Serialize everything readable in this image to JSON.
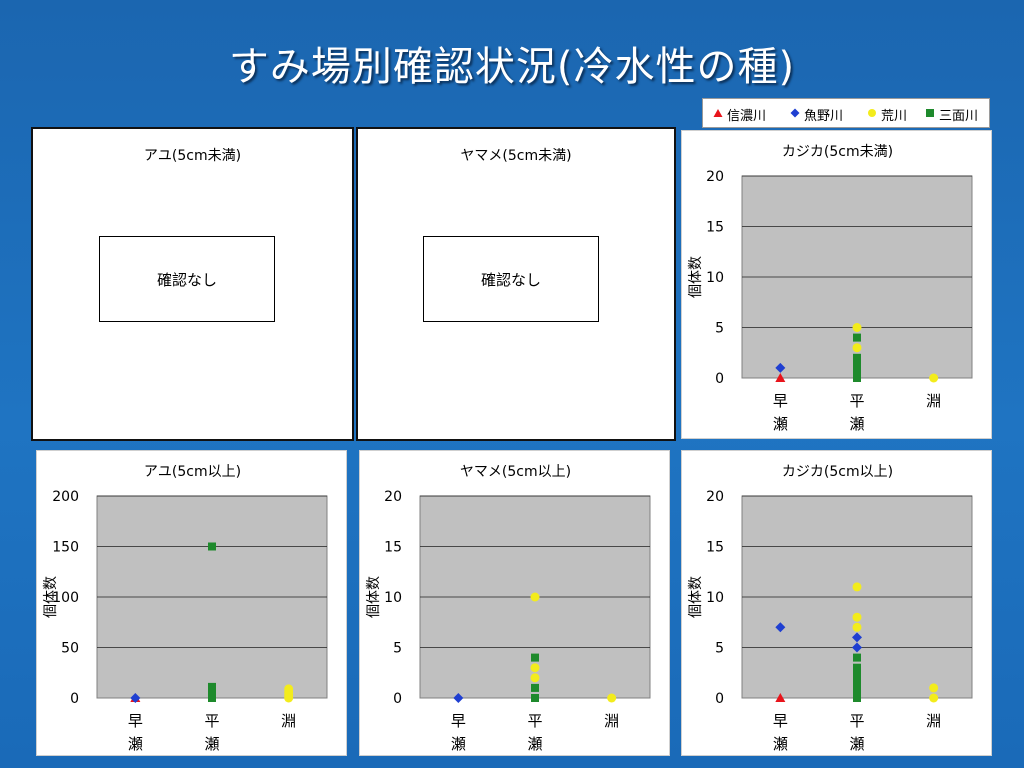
{
  "slide": {
    "title": "すみ場別確認状況(冷水性の種)"
  },
  "legend": [
    {
      "label": "信濃川",
      "color": "#e8141b",
      "marker": "triangle"
    },
    {
      "label": "魚野川",
      "color": "#1f3fd1",
      "marker": "diamond"
    },
    {
      "label": "荒川",
      "color": "#f3ec1c",
      "marker": "circle"
    },
    {
      "label": "三面川",
      "color": "#1e8a2c",
      "marker": "square"
    }
  ],
  "panels": {
    "ayu_small": {
      "title": "アユ(5cm未満)",
      "nodata": "確認なし"
    },
    "yamame_small": {
      "title": "ヤマメ(5cm未満)",
      "nodata": "確認なし"
    }
  },
  "chart_data": [
    {
      "id": "kajika_small",
      "type": "scatter",
      "title": "カジカ(5cm未満)",
      "categories": [
        "早\n瀬",
        "平\n瀬",
        "淵"
      ],
      "ylabel": "個体数",
      "xlabel": "",
      "ylim": [
        0,
        20
      ],
      "yticks": [
        0,
        5,
        10,
        15,
        20
      ],
      "grid": true,
      "series": [
        {
          "name": "信濃川",
          "points": [
            [
              0,
              0
            ]
          ]
        },
        {
          "name": "魚野川",
          "points": [
            [
              0,
              1
            ]
          ]
        },
        {
          "name": "荒川",
          "points": [
            [
              1,
              5
            ],
            [
              1,
              3
            ],
            [
              2,
              0
            ]
          ]
        },
        {
          "name": "三面川",
          "points": [
            [
              1,
              4
            ],
            [
              1,
              2
            ],
            [
              1,
              1.5
            ],
            [
              1,
              1
            ],
            [
              1,
              0.5
            ],
            [
              1,
              0
            ]
          ]
        }
      ]
    },
    {
      "id": "ayu_large",
      "type": "scatter",
      "title": "アユ(5cm以上)",
      "categories": [
        "早\n瀬",
        "平\n瀬",
        "淵"
      ],
      "ylabel": "個体数",
      "xlabel": "",
      "ylim": [
        0,
        200
      ],
      "yticks": [
        0,
        50,
        100,
        150,
        200
      ],
      "grid": true,
      "series": [
        {
          "name": "信濃川",
          "points": [
            [
              0,
              0
            ]
          ]
        },
        {
          "name": "魚野川",
          "points": [
            [
              0,
              0
            ]
          ]
        },
        {
          "name": "荒川",
          "points": [
            [
              2,
              9
            ],
            [
              2,
              6
            ],
            [
              2,
              3
            ],
            [
              2,
              0
            ]
          ]
        },
        {
          "name": "三面川",
          "points": [
            [
              1,
              150
            ],
            [
              1,
              11
            ],
            [
              1,
              8
            ],
            [
              1,
              5
            ],
            [
              1,
              2
            ],
            [
              1,
              0
            ]
          ]
        }
      ]
    },
    {
      "id": "yamame_large",
      "type": "scatter",
      "title": "ヤマメ(5cm以上)",
      "categories": [
        "早\n瀬",
        "平\n瀬",
        "淵"
      ],
      "ylabel": "個体数",
      "xlabel": "",
      "ylim": [
        0,
        20
      ],
      "yticks": [
        0,
        5,
        10,
        15,
        20
      ],
      "grid": true,
      "series": [
        {
          "name": "魚野川",
          "points": [
            [
              0,
              0
            ]
          ]
        },
        {
          "name": "荒川",
          "points": [
            [
              1,
              10
            ],
            [
              1,
              3
            ],
            [
              1,
              2
            ],
            [
              2,
              0
            ]
          ]
        },
        {
          "name": "三面川",
          "points": [
            [
              1,
              4
            ],
            [
              1,
              1
            ],
            [
              1,
              0
            ]
          ]
        }
      ]
    },
    {
      "id": "kajika_large",
      "type": "scatter",
      "title": "カジカ(5cm以上)",
      "categories": [
        "早\n瀬",
        "平\n瀬",
        "淵"
      ],
      "ylabel": "個体数",
      "xlabel": "",
      "ylim": [
        0,
        20
      ],
      "yticks": [
        0,
        5,
        10,
        15,
        20
      ],
      "grid": true,
      "series": [
        {
          "name": "信濃川",
          "points": [
            [
              0,
              0
            ]
          ]
        },
        {
          "name": "魚野川",
          "points": [
            [
              0,
              7
            ],
            [
              1,
              6
            ],
            [
              1,
              5
            ]
          ]
        },
        {
          "name": "荒川",
          "points": [
            [
              1,
              11
            ],
            [
              1,
              8
            ],
            [
              1,
              7
            ],
            [
              2,
              1
            ],
            [
              2,
              0
            ]
          ]
        },
        {
          "name": "三面川",
          "points": [
            [
              1,
              4
            ],
            [
              1,
              3
            ],
            [
              1,
              2.5
            ],
            [
              1,
              2
            ],
            [
              1,
              1.5
            ],
            [
              1,
              1
            ],
            [
              1,
              0.5
            ],
            [
              1,
              0
            ]
          ]
        }
      ]
    }
  ]
}
